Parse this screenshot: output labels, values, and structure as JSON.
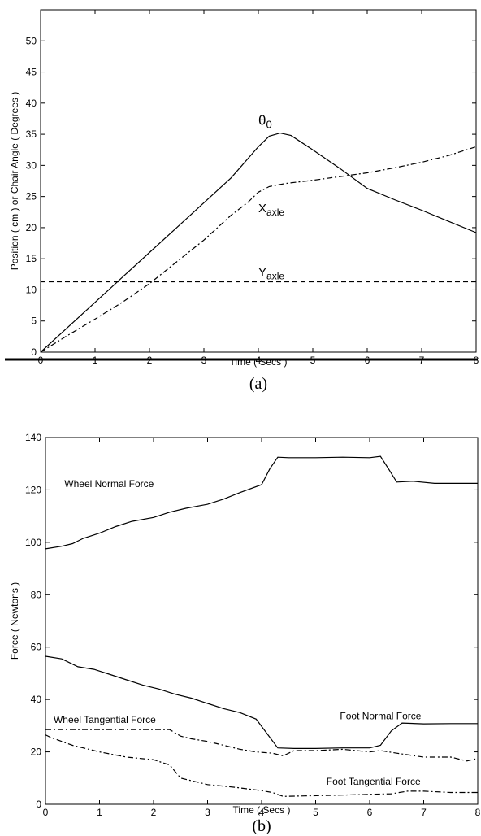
{
  "chart_data": [
    {
      "type": "line",
      "caption": "(a)",
      "xlabel": "Time ( Secs )",
      "ylabel": "Position ( cm ) or Chair Angle ( Degrees )",
      "xlim": [
        0,
        8
      ],
      "ylim": [
        0,
        55
      ],
      "xticks": [
        0,
        1,
        2,
        3,
        4,
        5,
        6,
        7,
        8
      ],
      "yticks": [
        0,
        5,
        10,
        15,
        20,
        25,
        30,
        35,
        40,
        45,
        50
      ],
      "grid": false,
      "series": [
        {
          "name": "θ0",
          "dash": "solid",
          "x": [
            0,
            0.5,
            1,
            1.5,
            2,
            2.5,
            3,
            3.5,
            4,
            4.2,
            4.4,
            4.6,
            5,
            5.5,
            6,
            6.5,
            7,
            7.5,
            8
          ],
          "y": [
            0,
            4,
            8,
            12,
            16,
            20,
            24,
            28,
            33,
            34.7,
            35.2,
            34.8,
            32.5,
            29.5,
            26.3,
            24.5,
            22.8,
            21,
            19.2
          ]
        },
        {
          "name": "Xaxle",
          "dash": "dashdot",
          "x": [
            0,
            0.5,
            1,
            1.5,
            2,
            2.5,
            3,
            3.5,
            3.8,
            4,
            4.2,
            4.5,
            5,
            5.5,
            6,
            6.5,
            7,
            7.5,
            8
          ],
          "y": [
            0,
            2.7,
            5.3,
            8,
            11,
            14.5,
            18,
            22,
            24,
            25.7,
            26.6,
            27.1,
            27.6,
            28.2,
            28.8,
            29.6,
            30.5,
            31.6,
            33
          ]
        },
        {
          "name": "Yaxle",
          "dash": "dashed",
          "x": [
            0,
            8
          ],
          "y": [
            11.3,
            11.3
          ]
        }
      ],
      "annotations": [
        {
          "text": "θ",
          "sub": "0",
          "x": 4.0,
          "y": 36.5,
          "series": "θ0"
        },
        {
          "text": "X",
          "sub": "axle",
          "x": 4.0,
          "y": 22.5,
          "series": "Xaxle"
        },
        {
          "text": "Y",
          "sub": "axle",
          "x": 4.0,
          "y": 12.2,
          "series": "Yaxle"
        }
      ]
    },
    {
      "type": "line",
      "caption": "(b)",
      "xlabel": "Time ( Secs )",
      "ylabel": "Force ( Newtons )",
      "xlim": [
        0,
        8
      ],
      "ylim": [
        0,
        140
      ],
      "xticks": [
        0,
        1,
        2,
        3,
        4,
        5,
        6,
        7,
        8
      ],
      "yticks": [
        0,
        20,
        40,
        60,
        80,
        100,
        120,
        140
      ],
      "grid": false,
      "series": [
        {
          "name": "Wheel Normal Force",
          "dash": "solid",
          "x": [
            0,
            0.3,
            0.5,
            0.7,
            1,
            1.3,
            1.6,
            2,
            2.3,
            2.6,
            3,
            3.3,
            3.6,
            4,
            4.15,
            4.3,
            4.5,
            5,
            5.5,
            6,
            6.2,
            6.35,
            6.5,
            6.8,
            7.2,
            8
          ],
          "y": [
            97.5,
            98.5,
            99.5,
            101.5,
            103.5,
            106,
            108,
            109.5,
            111.5,
            113,
            114.5,
            116.5,
            119,
            122,
            128,
            132.5,
            132.3,
            132.3,
            132.5,
            132.3,
            132.8,
            128,
            123,
            123.3,
            122.5,
            122.5
          ]
        },
        {
          "name": "Foot Normal Force",
          "dash": "solid",
          "x": [
            0,
            0.3,
            0.6,
            0.9,
            1.2,
            1.5,
            1.8,
            2.1,
            2.4,
            2.7,
            3,
            3.3,
            3.6,
            3.9,
            4.1,
            4.3,
            4.6,
            5,
            5.5,
            6,
            6.2,
            6.4,
            6.6,
            7,
            7.5,
            8
          ],
          "y": [
            56.5,
            55.5,
            52.5,
            51.5,
            49.5,
            47.5,
            45.5,
            44,
            42,
            40.5,
            38.5,
            36.5,
            35,
            32.5,
            27,
            21.5,
            21.3,
            21.3,
            21.5,
            21.5,
            22.5,
            28,
            31,
            30.7,
            30.8,
            30.8
          ]
        },
        {
          "name": "Wheel Tangential Force",
          "dash": "dashdot",
          "x": [
            0,
            0.5,
            1,
            1.5,
            2,
            2.3,
            2.5,
            2.7,
            3,
            3.3,
            3.6,
            3.9,
            4.2,
            4.4,
            4.6,
            5,
            5.5,
            6,
            6.2,
            6.5,
            7,
            7.5,
            7.8,
            8
          ],
          "y": [
            28.5,
            28.5,
            28.5,
            28.5,
            28.5,
            28.5,
            26,
            25,
            24,
            22.5,
            21,
            20,
            19.5,
            18.5,
            20.5,
            20.5,
            21,
            20,
            20.5,
            19.5,
            18,
            18,
            16.5,
            17.5
          ]
        },
        {
          "name": "Foot Tangential Force",
          "dash": "dashdot",
          "x": [
            0,
            0.1,
            0.5,
            1,
            1.5,
            2,
            2.3,
            2.5,
            2.8,
            3,
            3.5,
            4,
            4.2,
            4.4,
            4.8,
            5.5,
            6,
            6.4,
            6.7,
            7,
            7.5,
            8
          ],
          "y": [
            26.5,
            25.5,
            22.5,
            20,
            18,
            17,
            15,
            10,
            8.5,
            7.5,
            6.5,
            5.2,
            4.5,
            3,
            3.2,
            3.5,
            3.8,
            4,
            5,
            5,
            4.5,
            4.5
          ]
        }
      ],
      "annotations": [
        {
          "text": "Wheel Normal Force",
          "x": 0.35,
          "y": 121,
          "series": "Wheel Normal Force"
        },
        {
          "text": "Foot Normal Force",
          "x": 5.45,
          "y": 32.5,
          "series": "Foot Normal Force"
        },
        {
          "text": "Wheel Tangential Force",
          "x": 0.15,
          "y": 31,
          "series": "Wheel Tangential Force"
        },
        {
          "text": "Foot Tangential Force",
          "x": 5.2,
          "y": 7.5,
          "series": "Foot Tangential Force"
        }
      ]
    }
  ]
}
